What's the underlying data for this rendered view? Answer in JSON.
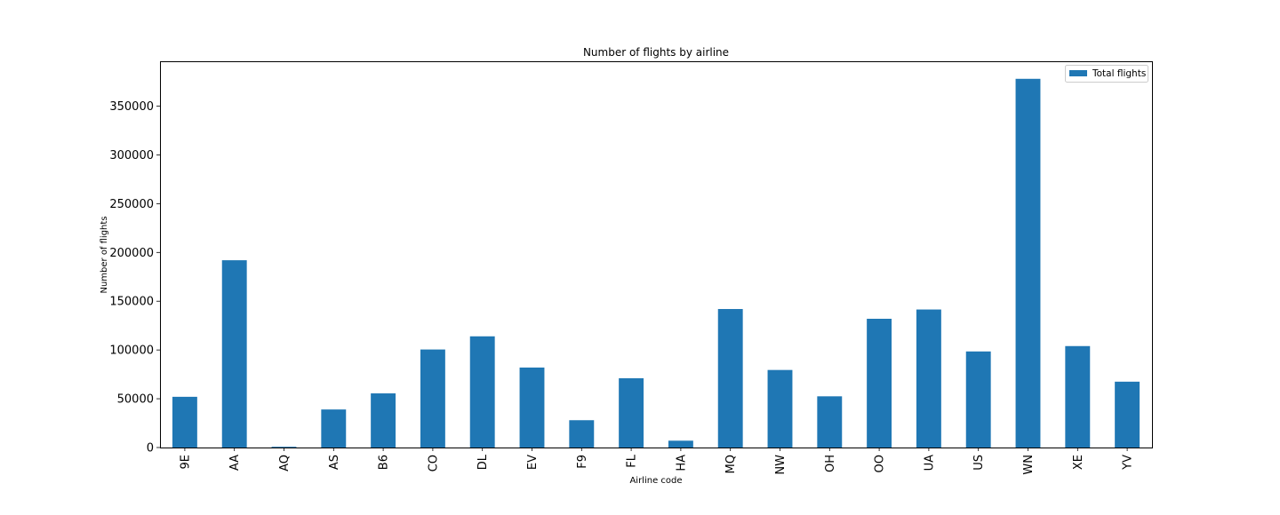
{
  "chart_data": {
    "type": "bar",
    "title": "Number of flights by airline",
    "xlabel": "Airline code",
    "ylabel": "Number of flights",
    "categories": [
      "9E",
      "AA",
      "AQ",
      "AS",
      "B6",
      "CO",
      "DL",
      "EV",
      "F9",
      "FL",
      "HA",
      "MQ",
      "NW",
      "OH",
      "OO",
      "UA",
      "US",
      "WN",
      "XE",
      "YV"
    ],
    "series": [
      {
        "name": "Total flights",
        "color": "#1f77b4",
        "values": [
          52000,
          192000,
          750,
          39000,
          55500,
          100500,
          114000,
          82000,
          28000,
          71000,
          7000,
          142000,
          79500,
          52500,
          132000,
          141500,
          98500,
          378000,
          104000,
          67500
        ]
      }
    ],
    "ylim": [
      0,
      396000
    ],
    "yticks": [
      0,
      50000,
      100000,
      150000,
      200000,
      250000,
      300000,
      350000
    ],
    "ytick_labels": [
      "0",
      "50000",
      "100000",
      "150000",
      "200000",
      "250000",
      "300000",
      "350000"
    ],
    "grid": false,
    "legend_position": "top-right"
  }
}
